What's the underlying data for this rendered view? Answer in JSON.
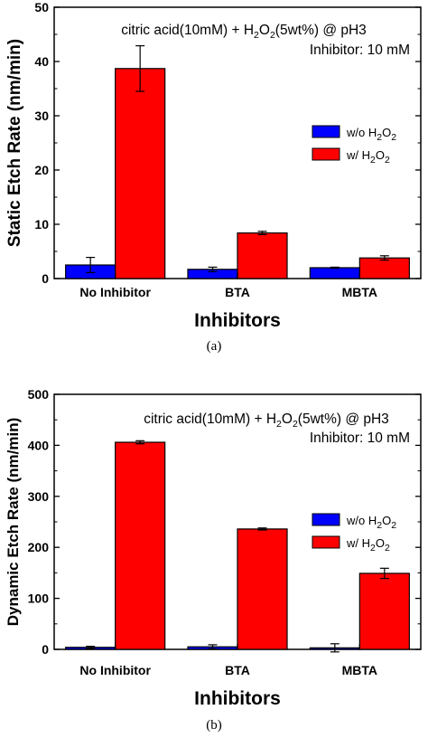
{
  "chart_data": [
    {
      "type": "bar",
      "caption": "(a)",
      "annotation": {
        "line1_pre": "citric acid(10mM) + H",
        "sub1": "2",
        "mid": "O",
        "sub2": "2",
        "line1_post": "(5wt%) @ pH3",
        "line2": "Inhibitor: 10 mM"
      },
      "xlabel": "Inhibitors",
      "ylabel": "Static Etch Rate (nm/min)",
      "categories": [
        "No Inhibitor",
        "BTA",
        "MBTA"
      ],
      "ylim": [
        0,
        50
      ],
      "yticks": [
        0,
        10,
        20,
        30,
        40,
        50
      ],
      "legend_position": "right",
      "series": [
        {
          "label_pre": "w/o H",
          "label_sub1": "2",
          "label_mid": "O",
          "label_sub2": "2",
          "color": "#0000ff",
          "values": [
            2.5,
            1.7,
            2.0
          ],
          "errors": [
            1.4,
            0.4,
            0.1
          ]
        },
        {
          "label_pre": "w/ H",
          "label_sub1": "2",
          "label_mid": "O",
          "label_sub2": "2",
          "color": "#ff0000",
          "values": [
            38.7,
            8.4,
            3.8
          ],
          "errors": [
            4.2,
            0.3,
            0.4
          ]
        }
      ]
    },
    {
      "type": "bar",
      "caption": "(b)",
      "annotation": {
        "line1_pre": "citric acid(10mM) + H",
        "sub1": "2",
        "mid": "O",
        "sub2": "2",
        "line1_post": "(5wt%) @ pH3",
        "line2": "Inhibitor: 10 mM"
      },
      "xlabel": "Inhibitors",
      "ylabel": "Dynamic Etch Rate (nm/min)",
      "categories": [
        "No Inhibitor",
        "BTA",
        "MBTA"
      ],
      "ylim": [
        0,
        500
      ],
      "yticks": [
        0,
        100,
        200,
        300,
        400,
        500
      ],
      "legend_position": "right",
      "series": [
        {
          "label_pre": "w/o H",
          "label_sub1": "2",
          "label_mid": "O",
          "label_sub2": "2",
          "color": "#0000ff",
          "values": [
            4,
            5,
            3
          ],
          "errors": [
            2,
            4,
            8
          ]
        },
        {
          "label_pre": "w/ H",
          "label_sub1": "2",
          "label_mid": "O",
          "label_sub2": "2",
          "color": "#ff0000",
          "values": [
            406,
            236,
            149
          ],
          "errors": [
            3,
            2,
            10
          ]
        }
      ]
    }
  ]
}
